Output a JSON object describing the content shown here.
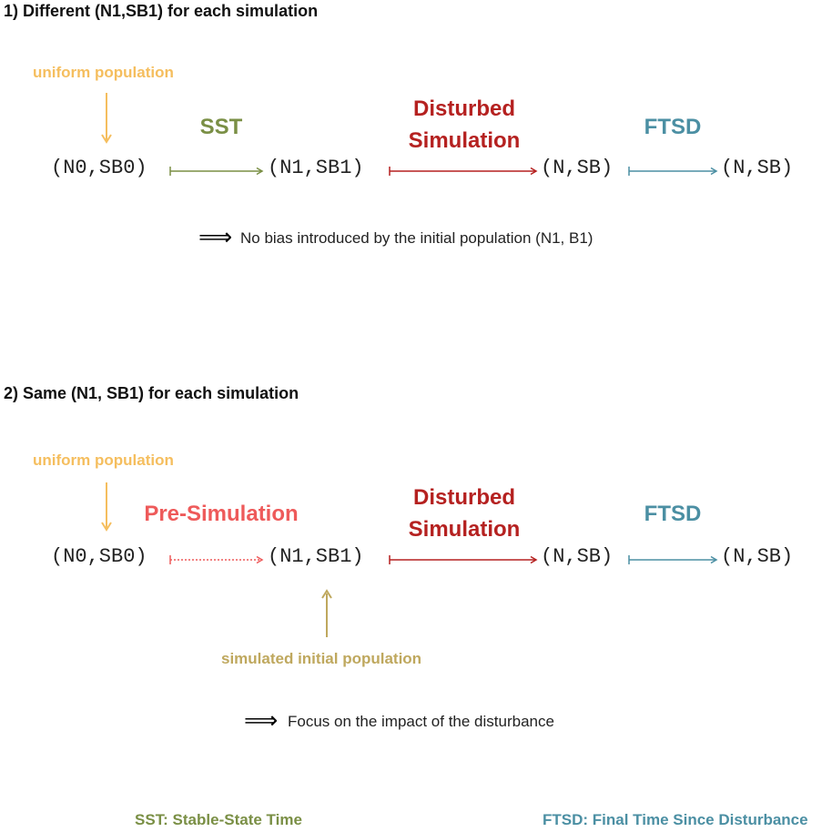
{
  "section1": {
    "heading": "1) Different (N1,SB1) for each simulation",
    "uniform_label": "uniform population",
    "nodes": [
      "(N0,SB0)",
      "(N1,SB1)",
      "(N,SB)",
      "(N,SB)"
    ],
    "step_sst": "SST",
    "step_disturbed_line1": "Disturbed",
    "step_disturbed_line2": "Simulation",
    "step_ftsd": "FTSD",
    "implies_symbol": "⟹",
    "conclusion": "No bias introduced by the initial population (N1, B1)"
  },
  "section2": {
    "heading": "2) Same (N1, SB1) for each simulation",
    "uniform_label": "uniform population",
    "nodes": [
      "(N0,SB0)",
      "(N1,SB1)",
      "(N,SB)",
      "(N,SB)"
    ],
    "step_presim": "Pre-Simulation",
    "step_disturbed_line1": "Disturbed",
    "step_disturbed_line2": "Simulation",
    "step_ftsd": "FTSD",
    "simulated_label": "simulated initial population",
    "implies_symbol": "⟹",
    "conclusion": "Focus on the impact of the disturbance"
  },
  "legend": {
    "sst": "SST: Stable-State Time",
    "ftsd": "FTSD: Final Time Since Disturbance"
  },
  "colors": {
    "orange": "#f5be5e",
    "green": "#7a8f45",
    "red": "#b52120",
    "teal": "#4b8fa3",
    "salmon": "#ee5a5a",
    "olive": "#bfa85e"
  }
}
